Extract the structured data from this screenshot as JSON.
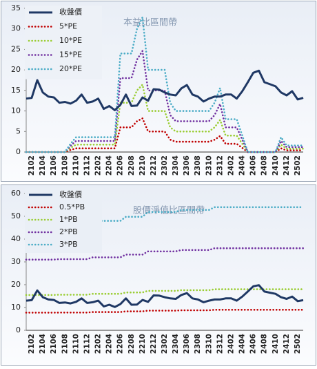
{
  "chart_data": [
    {
      "type": "line",
      "title": "本益比區間帶",
      "categories": [
        null,
        "2102",
        null,
        "2104",
        null,
        "2106",
        null,
        "2108",
        null,
        "2110",
        null,
        "2112",
        null,
        "2202",
        null,
        "2204",
        null,
        "2206",
        null,
        "2208",
        null,
        "2210",
        null,
        "2212",
        null,
        "2302",
        null,
        "2304",
        null,
        "2306",
        null,
        "2308",
        null,
        "2310",
        null,
        "2312",
        null,
        "2402",
        null,
        "2404",
        null,
        "2406",
        null,
        "2408",
        null,
        "2410",
        null,
        "2412",
        null,
        "2502",
        null
      ],
      "ylim": [
        0,
        35
      ],
      "yticks": [
        0,
        5,
        10,
        15,
        20,
        25,
        30,
        35
      ],
      "grid": false,
      "legend": "top-left",
      "series": [
        {
          "name": "收盤價",
          "color": "#1f3864",
          "style": "solid",
          "values": [
            13,
            13.2,
            17.5,
            14.5,
            13.5,
            13.3,
            12,
            12.2,
            11.8,
            12.5,
            14,
            12,
            12.3,
            13,
            10.5,
            11.2,
            10.2,
            11.5,
            14,
            11.2,
            11.3,
            13.3,
            12.5,
            15.3,
            15.2,
            14.5,
            14,
            13.8,
            15.5,
            16.3,
            14,
            13.5,
            12.3,
            13,
            13.5,
            13.5,
            14,
            14,
            13,
            14.8,
            17,
            19.3,
            19.8,
            17,
            16.5,
            16,
            14.5,
            13.8,
            14.8,
            12.8,
            13.2
          ]
        },
        {
          "name": "5*PE",
          "color": "#c00000",
          "style": "dotted",
          "values": [
            0,
            0,
            0,
            0,
            0,
            0,
            0,
            0,
            0.5,
            0.9,
            0.9,
            0.9,
            0.9,
            0.9,
            0.9,
            0.9,
            0.9,
            6,
            6,
            6,
            7.5,
            8.2,
            5,
            5,
            5,
            5,
            3,
            2.5,
            2.5,
            2.5,
            2.5,
            2.5,
            2.5,
            2.5,
            3,
            3.9,
            2,
            2,
            2,
            1,
            0,
            0,
            0,
            0,
            0,
            0,
            0.9,
            0.4,
            0.4,
            0.4,
            0.4
          ]
        },
        {
          "name": "10*PE",
          "color": "#9acd32",
          "style": "dotted",
          "values": [
            0,
            0,
            0,
            0,
            0,
            0,
            0,
            0,
            1,
            1.8,
            1.8,
            1.8,
            1.8,
            1.8,
            1.8,
            1.8,
            1.8,
            12,
            12,
            12,
            15,
            16.4,
            10,
            10,
            10,
            10,
            6,
            5,
            5,
            5,
            5,
            5,
            5,
            5,
            6,
            7.8,
            4,
            4,
            4,
            2,
            0,
            0,
            0,
            0,
            0,
            0,
            1.8,
            0.8,
            0.8,
            0.8,
            0.8
          ]
        },
        {
          "name": "15*PE",
          "color": "#7030a0",
          "style": "dotted",
          "values": [
            0,
            0,
            0,
            0,
            0,
            0,
            0,
            0,
            1.5,
            2.7,
            2.7,
            2.7,
            2.7,
            2.7,
            2.7,
            2.7,
            2.7,
            18,
            18,
            18,
            22.5,
            24.6,
            15,
            15,
            15,
            15,
            9,
            7.5,
            7.5,
            7.5,
            7.5,
            7.5,
            7.5,
            7.5,
            9,
            11.7,
            6,
            6,
            6,
            3,
            0,
            0,
            0,
            0,
            0,
            0,
            2.7,
            1.2,
            1.2,
            1.2,
            1.2
          ]
        },
        {
          "name": "20*PE",
          "color": "#4bacc6",
          "style": "dotted",
          "values": [
            0,
            0,
            0,
            0,
            0,
            0,
            0,
            0,
            2,
            3.6,
            3.6,
            3.6,
            3.6,
            3.6,
            3.6,
            3.6,
            3.6,
            24,
            24,
            24,
            30,
            32.8,
            20,
            20,
            20,
            20,
            12,
            10,
            10,
            10,
            10,
            10,
            10,
            10,
            12,
            15.6,
            8,
            8,
            8,
            4,
            0,
            0,
            0,
            0,
            0,
            0,
            3.6,
            1.6,
            1.6,
            1.6,
            1.6
          ]
        }
      ]
    },
    {
      "type": "line",
      "title": "股價淨值比區間帶",
      "categories": [
        null,
        "2102",
        null,
        "2104",
        null,
        "2106",
        null,
        "2108",
        null,
        "2110",
        null,
        "2112",
        null,
        "2202",
        null,
        "2204",
        null,
        "2206",
        null,
        "2208",
        null,
        "2210",
        null,
        "2212",
        null,
        "2302",
        null,
        "2304",
        null,
        "2306",
        null,
        "2308",
        null,
        "2310",
        null,
        "2312",
        null,
        "2402",
        null,
        "2404",
        null,
        "2406",
        null,
        "2408",
        null,
        "2410",
        null,
        "2412",
        null,
        "2502",
        null
      ],
      "ylim": [
        0,
        60
      ],
      "yticks": [
        0,
        10,
        20,
        30,
        40,
        50,
        60
      ],
      "grid": false,
      "legend": "top-left",
      "series": [
        {
          "name": "收盤價",
          "color": "#1f3864",
          "style": "solid",
          "values": [
            13,
            13.2,
            17.5,
            14.5,
            13.5,
            13.3,
            12,
            12.2,
            11.8,
            12.5,
            14,
            12,
            12.3,
            13,
            10.5,
            11.2,
            10.2,
            11.5,
            14,
            11.2,
            11.3,
            13.3,
            12.5,
            15.3,
            15.2,
            14.5,
            14,
            13.8,
            15.5,
            16.3,
            14,
            13.5,
            12.3,
            13,
            13.5,
            13.5,
            14,
            14,
            13,
            14.8,
            17,
            19.3,
            19.8,
            17,
            16.5,
            16,
            14.5,
            13.8,
            14.8,
            12.8,
            13.2
          ]
        },
        {
          "name": "0.5*PB",
          "color": "#c00000",
          "style": "dotted",
          "values": [
            7.75,
            7.75,
            7.75,
            7.75,
            7.75,
            7.75,
            7.8,
            7.8,
            7.8,
            7.8,
            7.8,
            7.8,
            8,
            8,
            8,
            8,
            8,
            8,
            8.3,
            8.3,
            8.3,
            8.3,
            8.65,
            8.65,
            8.65,
            8.65,
            8.65,
            8.65,
            8.8,
            8.8,
            8.8,
            8.8,
            8.8,
            8.8,
            9,
            9,
            9,
            9,
            9,
            9,
            9,
            9,
            9,
            9,
            9,
            9,
            9,
            9,
            9,
            9,
            9
          ]
        },
        {
          "name": "1*PB",
          "color": "#9acd32",
          "style": "dotted",
          "values": [
            15.5,
            15.5,
            15.5,
            15.5,
            15.5,
            15.5,
            15.6,
            15.6,
            15.6,
            15.6,
            15.6,
            15.6,
            16,
            16,
            16,
            16,
            16,
            16,
            16.6,
            16.6,
            16.6,
            16.6,
            17.3,
            17.3,
            17.3,
            17.3,
            17.3,
            17.3,
            17.6,
            17.6,
            17.6,
            17.6,
            17.6,
            17.6,
            18,
            18,
            18,
            18,
            18,
            18,
            18,
            18,
            18,
            18,
            18,
            18,
            18,
            18,
            18,
            18,
            18
          ]
        },
        {
          "name": "2*PB",
          "color": "#7030a0",
          "style": "dotted",
          "values": [
            31,
            31,
            31,
            31,
            31,
            31,
            31.2,
            31.2,
            31.2,
            31.2,
            31.2,
            31.2,
            32,
            32,
            32,
            32,
            32,
            32,
            33.2,
            33.2,
            33.2,
            33.2,
            34.6,
            34.6,
            34.6,
            34.6,
            34.6,
            34.6,
            35.2,
            35.2,
            35.2,
            35.2,
            35.2,
            35.2,
            36,
            36,
            36,
            36,
            36,
            36,
            36,
            36,
            36,
            36,
            36,
            36,
            36,
            36,
            36,
            36,
            36
          ]
        },
        {
          "name": "3*PB",
          "color": "#4bacc6",
          "style": "dotted",
          "values": [
            46.5,
            46.5,
            46.5,
            46.5,
            46.5,
            46.5,
            46.8,
            46.8,
            46.8,
            46.8,
            46.8,
            46.8,
            48,
            48,
            48,
            48,
            48,
            48,
            49.8,
            49.8,
            49.8,
            49.8,
            51.9,
            51.9,
            51.9,
            51.9,
            51.9,
            51.9,
            52.8,
            52.8,
            52.8,
            52.8,
            52.8,
            52.8,
            54,
            54,
            54,
            54,
            54,
            54,
            54,
            54,
            54,
            54,
            54,
            54,
            54,
            54,
            54,
            54,
            54
          ]
        }
      ]
    }
  ]
}
